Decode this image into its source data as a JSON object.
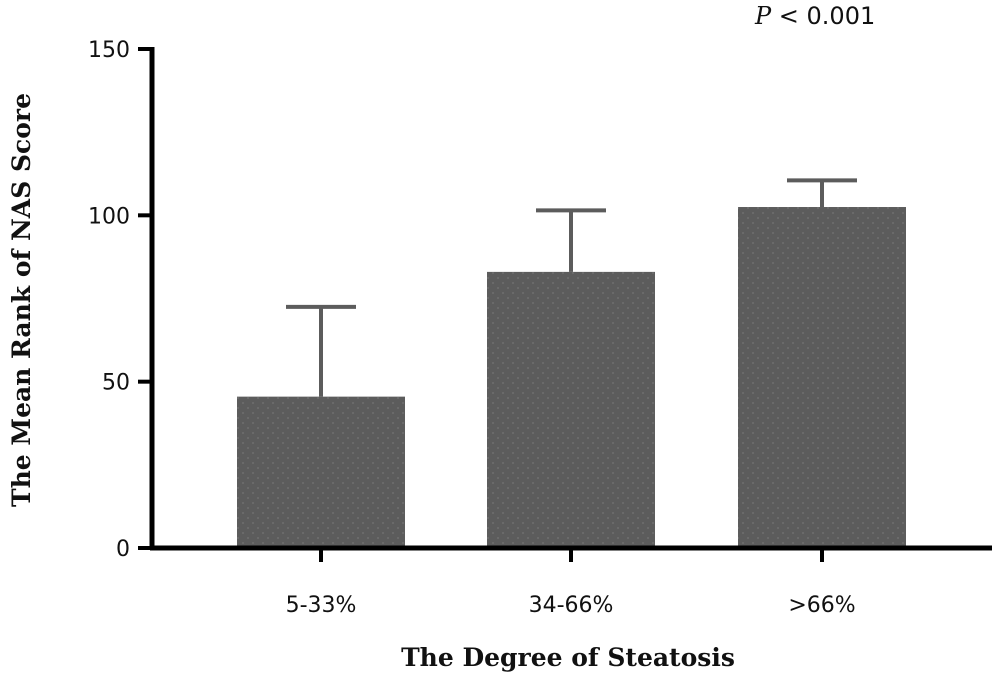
{
  "chart_data": {
    "type": "bar",
    "title": "",
    "annotation": {
      "italic": "P",
      "rest": " < 0.001"
    },
    "xlabel": "The Degree of Steatosis",
    "ylabel": "The Mean Rank of NAS Score",
    "categories": [
      "5-33%",
      "34-66%",
      ">66%"
    ],
    "values": [
      45.5,
      83,
      102.5
    ],
    "error_upper": [
      72.5,
      101.5,
      110.5
    ],
    "ylim": [
      0,
      150
    ],
    "yticks": [
      0,
      50,
      100,
      150
    ],
    "grid": false,
    "bar_color": "#5c5c5c",
    "error_color": "#5c5c5c"
  }
}
